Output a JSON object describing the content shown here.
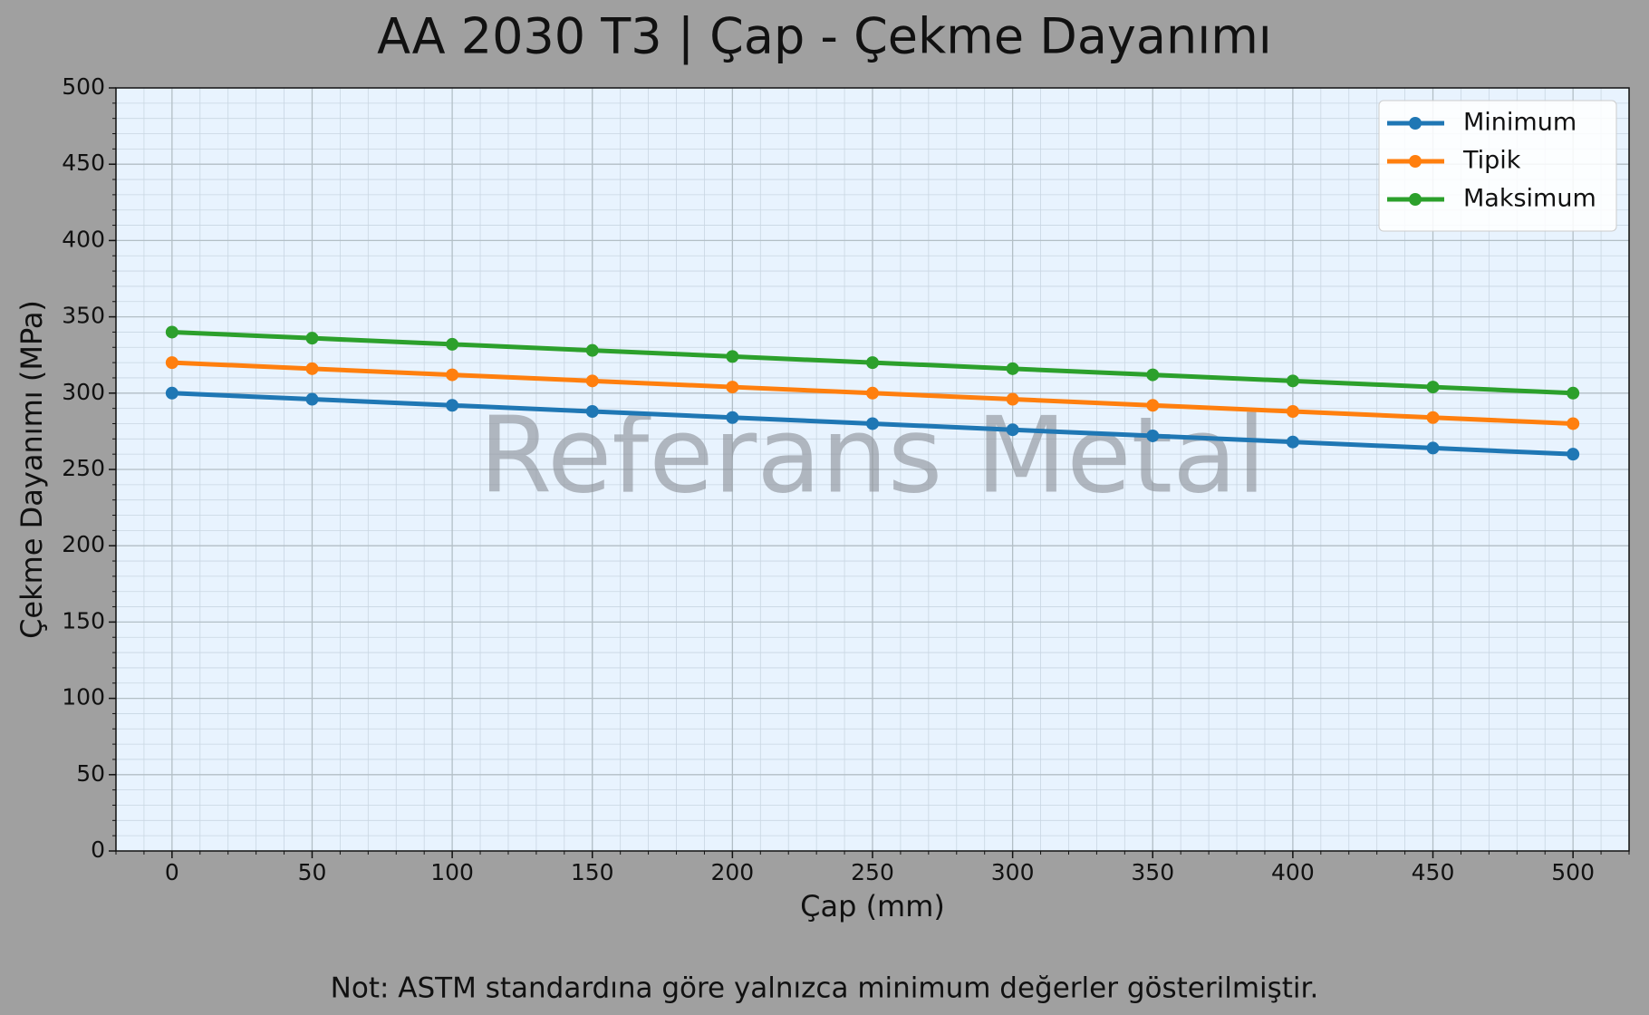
{
  "chart_data": {
    "type": "line",
    "title": "AA 2030 T3 | Çap - Çekme Dayanımı",
    "x_label": "Çap (mm)",
    "y_label": "Çekme Dayanımı (MPa)",
    "watermark": "Referans Metal",
    "note": "Not: ASTM standardına göre yalnızca minimum değerler gösterilmiştir.",
    "x": [
      0,
      50,
      100,
      150,
      200,
      250,
      300,
      350,
      400,
      450,
      500
    ],
    "series": [
      {
        "name": "Minimum",
        "color": "#1f77b4",
        "values": [
          300,
          296,
          292,
          288,
          284,
          280,
          276,
          272,
          268,
          264,
          260
        ]
      },
      {
        "name": "Tipik",
        "color": "#ff7f0e",
        "values": [
          320,
          316,
          312,
          308,
          304,
          300,
          296,
          292,
          288,
          284,
          280
        ]
      },
      {
        "name": "Maksimum",
        "color": "#2ca02c",
        "values": [
          340,
          336,
          332,
          328,
          324,
          320,
          316,
          312,
          308,
          304,
          300
        ]
      }
    ],
    "xlim": [
      -20,
      520
    ],
    "ylim": [
      0,
      500
    ],
    "xticks": [
      0,
      50,
      100,
      150,
      200,
      250,
      300,
      350,
      400,
      450,
      500
    ],
    "yticks": [
      0,
      50,
      100,
      150,
      200,
      250,
      300,
      350,
      400,
      450,
      500
    ],
    "grid": true,
    "legend": "upper right"
  }
}
